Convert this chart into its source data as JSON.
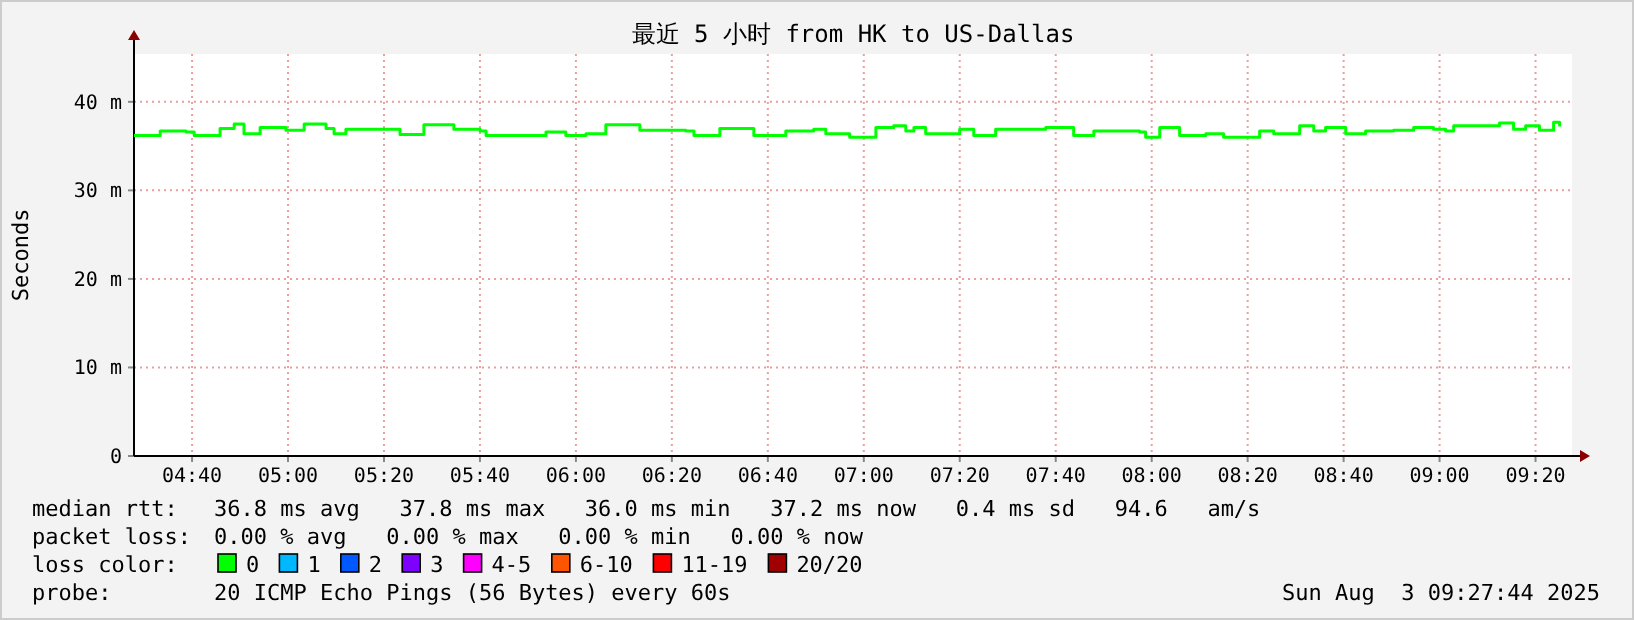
{
  "chart_data": {
    "type": "step",
    "title": "最近 5 小时 from HK to US-Dallas",
    "ylabel": "Seconds",
    "xlim": [
      4.465,
      9.46
    ],
    "ylim": [
      0,
      45.4
    ],
    "xticks": [
      {
        "value": 4.6667,
        "label": "04:40"
      },
      {
        "value": 5,
        "label": "05:00"
      },
      {
        "value": 5.3333,
        "label": "05:20"
      },
      {
        "value": 5.6667,
        "label": "05:40"
      },
      {
        "value": 6,
        "label": "06:00"
      },
      {
        "value": 6.3333,
        "label": "06:20"
      },
      {
        "value": 6.6667,
        "label": "06:40"
      },
      {
        "value": 7,
        "label": "07:00"
      },
      {
        "value": 7.3333,
        "label": "07:20"
      },
      {
        "value": 7.6667,
        "label": "07:40"
      },
      {
        "value": 8,
        "label": "08:00"
      },
      {
        "value": 8.3333,
        "label": "08:20"
      },
      {
        "value": 8.6667,
        "label": "08:40"
      },
      {
        "value": 9,
        "label": "09:00"
      },
      {
        "value": 9.3333,
        "label": "09:20"
      }
    ],
    "yticks": [
      0,
      {
        "value": 10,
        "label": "10 m"
      },
      {
        "value": 20,
        "label": "20 m"
      },
      {
        "value": 30,
        "label": "30 m"
      },
      {
        "value": 40,
        "label": "40 m"
      }
    ],
    "grid": true,
    "x": [
      4.465,
      4.535,
      4.556,
      4.646,
      4.674,
      4.764,
      4.813,
      4.847,
      4.903,
      4.993,
      5.056,
      5.132,
      5.16,
      5.201,
      5.319,
      5.389,
      5.472,
      5.576,
      5.667,
      5.688,
      5.806,
      5.896,
      5.965,
      6.035,
      6.104,
      6.222,
      6.382,
      6.41,
      6.5,
      6.618,
      6.729,
      6.826,
      6.868,
      6.951,
      6.986,
      7.042,
      7.104,
      7.146,
      7.174,
      7.215,
      7.333,
      7.382,
      7.458,
      7.563,
      7.632,
      7.729,
      7.799,
      7.958,
      7.979,
      8.028,
      8.097,
      8.188,
      8.25,
      8.375,
      8.424,
      8.514,
      8.563,
      8.604,
      8.674,
      8.743,
      8.84,
      8.91,
      8.979,
      9.021,
      9.049,
      9.139,
      9.208,
      9.257,
      9.299,
      9.347,
      9.396,
      9.417
    ],
    "series": [
      {
        "color": "#00ff00",
        "values": [
          36.2,
          36.2,
          36.7,
          36.6,
          36.2,
          37.0,
          37.5,
          36.4,
          37.1,
          36.8,
          37.5,
          37.0,
          36.4,
          36.9,
          36.9,
          36.3,
          37.4,
          36.9,
          36.7,
          36.2,
          36.2,
          36.6,
          36.2,
          36.4,
          37.4,
          36.8,
          36.7,
          36.2,
          37.0,
          36.2,
          36.7,
          36.9,
          36.4,
          36.0,
          36.0,
          37.1,
          37.3,
          36.7,
          37.1,
          36.4,
          36.9,
          36.2,
          36.9,
          36.9,
          37.1,
          36.2,
          36.7,
          36.6,
          36.0,
          37.1,
          36.2,
          36.4,
          36.0,
          36.7,
          36.4,
          37.3,
          36.7,
          37.1,
          36.4,
          36.7,
          36.8,
          37.1,
          36.9,
          36.7,
          37.3,
          37.3,
          37.6,
          36.9,
          37.3,
          36.8,
          37.7,
          37.2
        ]
      }
    ],
    "annotations": [
      "median rtt:",
      "36.8 ms avg   37.8 ms max   36.0 ms min   37.2 ms now   0.4 ms sd   94.6   am/s",
      "packet loss:",
      "0.00 % avg   0.00 % max   0.00 % min   0.00 % now",
      "loss color:",
      "0",
      "1",
      "2",
      "3",
      "4-5",
      "6-10",
      "11-19",
      "20/20",
      "probe:",
      "20 ICMP Echo Pings (56 Bytes) every 60s",
      "Sun Aug  3 09:27:44 2025"
    ]
  }
}
